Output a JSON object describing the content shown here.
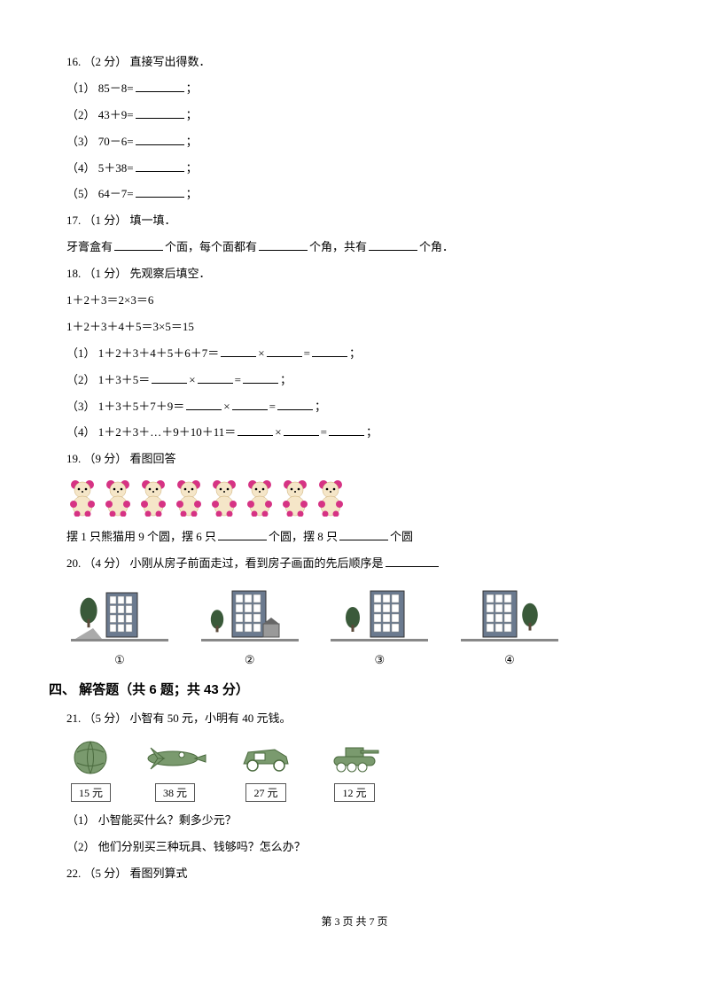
{
  "q16": {
    "header": "16.  （2 分）  直接写出得数．",
    "items": [
      "（1） 85－8=",
      "（2） 43＋9=",
      "（3） 70－6=",
      "（4） 5＋38=",
      "（5） 64－7="
    ]
  },
  "q17": {
    "header": "17.  （1 分）  填一填．",
    "text_a": "牙膏盒有",
    "text_b": "个面，每个面都有",
    "text_c": "个角，共有",
    "text_d": "个角．"
  },
  "q18": {
    "header": "18.  （1 分）  先观察后填空．",
    "ex1": "1＋2＋3＝2×3＝6",
    "ex2": "1＋2＋3＋4＋5＝3×5＝15",
    "i1": "（1） 1＋2＋3＋4＋5＋6＋7＝",
    "i2": "（2） 1＋3＋5＝",
    "i3": "（3） 1＋3＋5＋7＋9＝",
    "i4": "（4） 1＋2＋3＋…＋9＋10＋11＝"
  },
  "q19": {
    "header": "19.  （9 分）  看图回答",
    "text_a": "摆 1 只熊猫用 9 个圆，摆 6 只",
    "text_b": "个圆，摆 8 只",
    "text_c": "个圆",
    "panda": {
      "count": 8,
      "ear": "#d63384",
      "face": "#f5e6c8",
      "body": "#f5e6c8"
    }
  },
  "q20": {
    "header": "20.  （4 分）  小刚从房子前面走过，看到房子画面的先后顺序是",
    "labels": [
      "①",
      "②",
      "③",
      "④"
    ],
    "colors": {
      "building": "#6b7a8f",
      "roof": "#555",
      "tree": "#3a5a3a",
      "ground": "#888"
    }
  },
  "section4": "四、  解答题（共 6 题；共 43 分）",
  "q21": {
    "header": "21.  （5 分）  小智有 50 元，小明有 40 元钱。",
    "prices": [
      "15 元",
      "38 元",
      "27 元",
      "12 元"
    ],
    "sub1": "（1）  小智能买什么？剩多少元？",
    "sub2": "（2）  他们分别买三种玩具、钱够吗？怎么办？",
    "toy_color": "#7a9a6e"
  },
  "q22": {
    "header": "22.  （5 分）  看图列算式"
  },
  "footer": "第 3 页 共 7 页"
}
